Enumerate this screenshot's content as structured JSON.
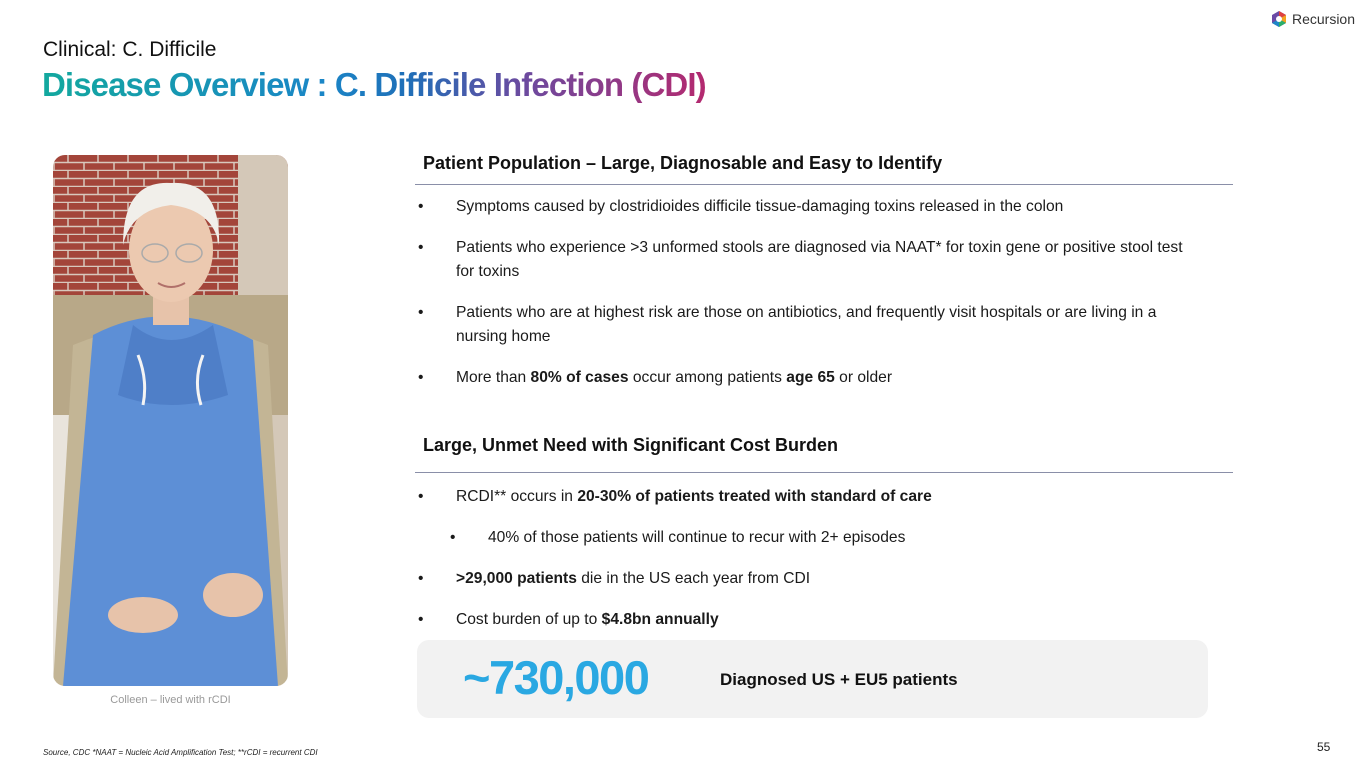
{
  "header": {
    "kicker": "Clinical: C. Difficile",
    "title": "Disease Overview : C. Difficile Infection (CDI)",
    "logo": "Recursion"
  },
  "photo": {
    "caption": "Colleen – lived with rCDI"
  },
  "sections": [
    {
      "heading": "Patient Population – Large, Diagnosable and Easy to Identify",
      "bullets": [
        {
          "level": 1,
          "parts": [
            {
              "text": "Symptoms caused by clostridioides difficile tissue-damaging toxins released in the colon",
              "bold": false
            }
          ]
        },
        {
          "level": 1,
          "parts": [
            {
              "text": "Patients who experience >3 unformed stools are diagnosed via NAAT* for toxin gene or positive stool test for toxins",
              "bold": false
            }
          ]
        },
        {
          "level": 1,
          "parts": [
            {
              "text": "Patients who are at highest risk are those on antibiotics, and frequently visit hospitals or are living in a nursing home",
              "bold": false
            }
          ]
        },
        {
          "level": 1,
          "parts": [
            {
              "text": "More than ",
              "bold": false
            },
            {
              "text": "80% of cases",
              "bold": true
            },
            {
              "text": " occur among patients ",
              "bold": false
            },
            {
              "text": "age 65",
              "bold": true
            },
            {
              "text": " or older",
              "bold": false
            }
          ]
        }
      ]
    },
    {
      "heading": "Large, Unmet Need with Significant Cost Burden",
      "bullets": [
        {
          "level": 1,
          "parts": [
            {
              "text": "RCDI** occurs in ",
              "bold": false
            },
            {
              "text": "20-30% of patients treated with standard of care",
              "bold": true
            }
          ]
        },
        {
          "level": 2,
          "parts": [
            {
              "text": "40% of those patients will continue to recur with 2+ episodes",
              "bold": false
            }
          ]
        },
        {
          "level": 1,
          "parts": [
            {
              "text": ">29,000 patients",
              "bold": true
            },
            {
              "text": " die in the US each year from CDI",
              "bold": false
            }
          ]
        },
        {
          "level": 1,
          "parts": [
            {
              "text": "Cost burden of up to ",
              "bold": false
            },
            {
              "text": "$4.8bn annually",
              "bold": true
            }
          ]
        }
      ]
    }
  ],
  "callout": {
    "value": "~730,000",
    "label": "Diagnosed US + EU5 patients"
  },
  "footer": {
    "source": "Source, CDC  *NAAT = Nucleic Acid Amplification Test; **rCDI = recurrent CDI",
    "page": "55"
  }
}
